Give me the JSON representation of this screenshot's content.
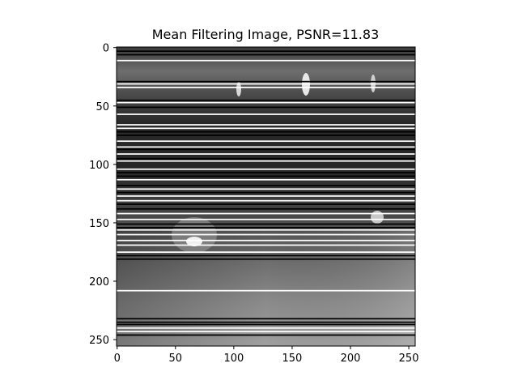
{
  "figure": {
    "title": "Mean Filtering Image, PSNR=11.83",
    "image_kind": "grayscale road/traffic night scene, mean filtered, with horizontal white and black line artifacts"
  },
  "chart_data": {
    "type": "image",
    "title": "Mean Filtering Image, PSNR=11.83",
    "xlim": [
      0,
      255
    ],
    "ylim": [
      255,
      0
    ],
    "xticks": [
      0,
      50,
      100,
      150,
      200,
      250
    ],
    "yticks": [
      0,
      50,
      100,
      150,
      200,
      250
    ],
    "white_rows": [
      11,
      31,
      34,
      47,
      57,
      66,
      69,
      80,
      85,
      91,
      97,
      104,
      113,
      121,
      127,
      131,
      142,
      147,
      156,
      160,
      165,
      169,
      175,
      208,
      240,
      243
    ],
    "black_rows": [
      3,
      6,
      29,
      45,
      51,
      72,
      75,
      87,
      95,
      107,
      110,
      118,
      124,
      134,
      138,
      151,
      154,
      178,
      181,
      232,
      235,
      237,
      246
    ]
  }
}
